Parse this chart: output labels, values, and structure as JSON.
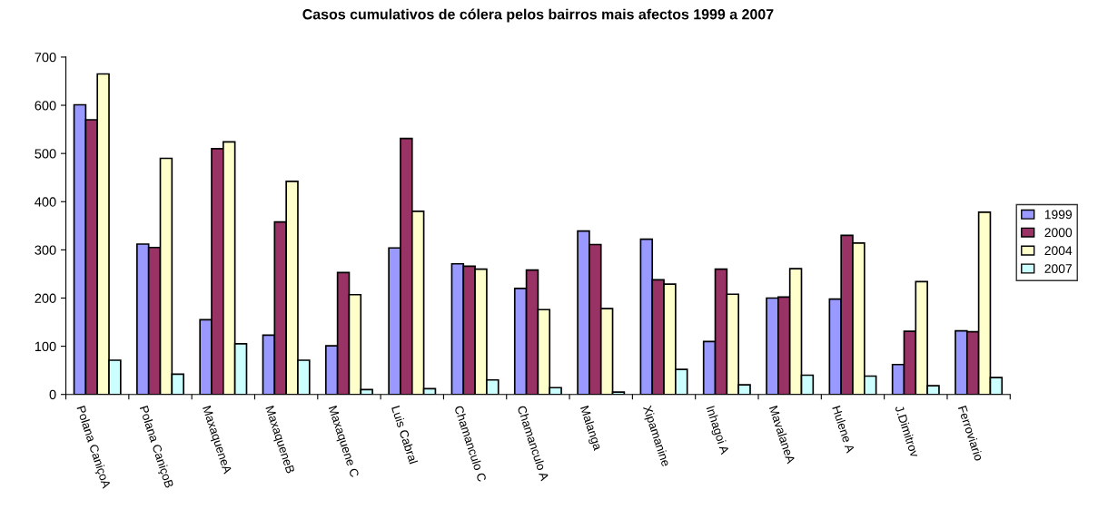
{
  "chart_data": {
    "type": "bar",
    "title": "Casos cumulativos de cólera pelos bairros mais afectos 1999 a 2007",
    "categories": [
      "Polana CaniçoA",
      "Polana CaniçoB",
      "MaxaqueneA",
      "MaxaqueneB",
      "Maxaquene C",
      "Luis Cabral",
      "Chamanculo C",
      "Chamanculo A",
      "Malanga",
      "Xipamanine",
      "Inhagoi A",
      "MavalaneA",
      "Hulene A",
      "J.Dimitrov",
      "Ferroviario"
    ],
    "series": [
      {
        "name": "1999",
        "color": "#9999ff",
        "values": [
          601,
          312,
          155,
          123,
          101,
          304,
          271,
          220,
          339,
          322,
          110,
          200,
          198,
          62,
          132
        ]
      },
      {
        "name": "2000",
        "color": "#993366",
        "values": [
          570,
          305,
          510,
          358,
          253,
          531,
          266,
          258,
          311,
          238,
          260,
          202,
          330,
          131,
          130
        ]
      },
      {
        "name": "2004",
        "color": "#ffffcc",
        "values": [
          665,
          490,
          524,
          442,
          207,
          380,
          260,
          176,
          178,
          229,
          208,
          261,
          314,
          234,
          378
        ]
      },
      {
        "name": "2007",
        "color": "#ccffff",
        "values": [
          71,
          42,
          105,
          71,
          10,
          12,
          30,
          14,
          5,
          52,
          20,
          40,
          38,
          18,
          35
        ]
      }
    ],
    "ylim": [
      0,
      700
    ],
    "yticks": [
      0,
      100,
      200,
      300,
      400,
      500,
      600,
      700
    ],
    "grid": false,
    "legend": "right"
  }
}
